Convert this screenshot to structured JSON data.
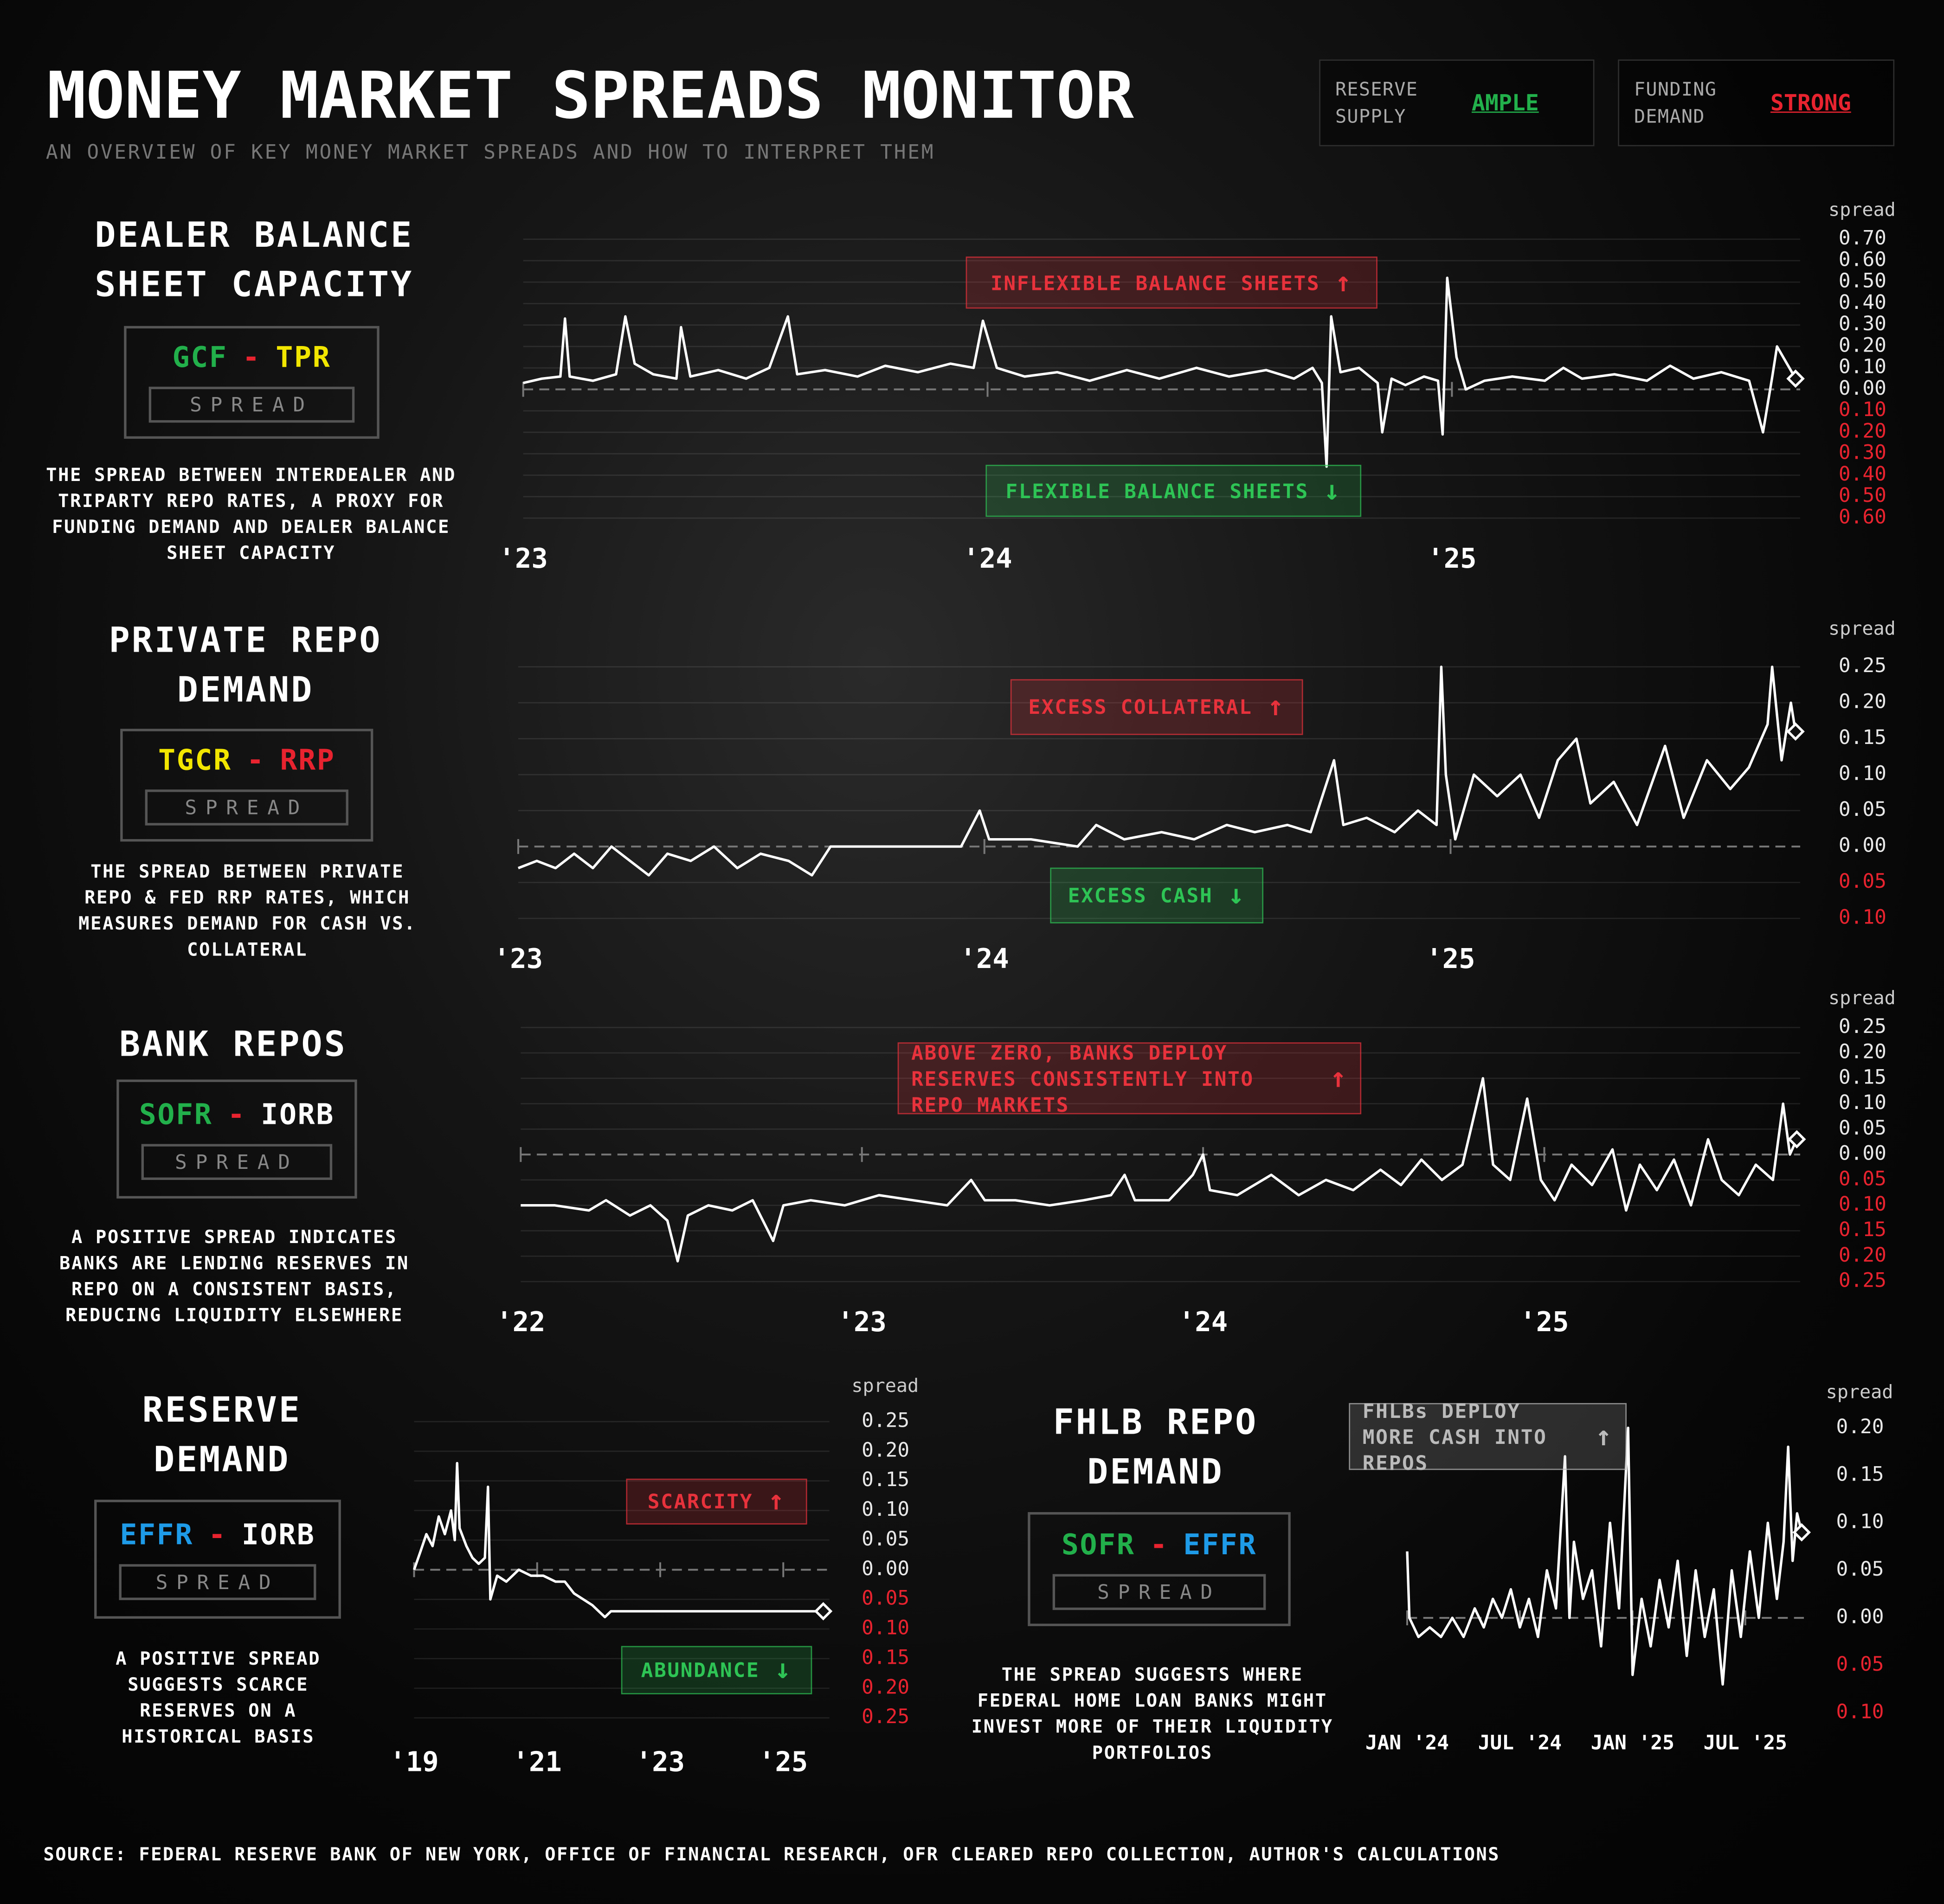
{
  "title": "MONEY MARKET SPREADS MONITOR",
  "subtitle": "AN OVERVIEW OF KEY MONEY MARKET SPREADS AND HOW TO INTERPRET THEM",
  "indicators": [
    {
      "label": "RESERVE SUPPLY",
      "value": "AMPLE",
      "color": "#22b04b"
    },
    {
      "label": "FUNDING DEMAND",
      "value": "STRONG",
      "color": "#e8232f"
    }
  ],
  "source": "SOURCE: FEDERAL RESERVE BANK OF NEW YORK, OFFICE OF FINANCIAL RESEARCH, OFR CLEARED REPO COLLECTION, AUTHOR'S CALCULATIONS",
  "chart_data": [
    {
      "type": "line",
      "title": "DEALER BALANCE SHEET CAPACITY",
      "formula": {
        "left": "GCF",
        "left_color": "#22b04b",
        "op": "-",
        "op_color": "#e8232f",
        "right": "TPR",
        "right_color": "#f2e600"
      },
      "spread_label": "SPREAD",
      "description": "THE SPREAD BETWEEN INTERDEALER AND TRIPARTY REPO RATES, A PROXY FOR FUNDING DEMAND AND DEALER BALANCE SHEET CAPACITY",
      "y_label": "spread",
      "grid": true,
      "color": "#ffffff",
      "annotations": [
        {
          "text": "INFLEXIBLE BALANCE SHEETS",
          "arrow": "↑",
          "color": "#e8323c"
        },
        {
          "text": "FLEXIBLE BALANCE SHEETS",
          "arrow": "↓",
          "color": "#2ec455"
        }
      ],
      "xlim": [
        2023,
        2025.75
      ],
      "xticks": [
        {
          "value": 2023,
          "label": "'23"
        },
        {
          "value": 2024,
          "label": "'24"
        },
        {
          "value": 2025,
          "label": "'25"
        }
      ],
      "ylim": [
        -0.6,
        0.7
      ],
      "yticks": [
        {
          "value": 0.7,
          "label": "0.70"
        },
        {
          "value": 0.6,
          "label": "0.60"
        },
        {
          "value": 0.5,
          "label": "0.50"
        },
        {
          "value": 0.4,
          "label": "0.40"
        },
        {
          "value": 0.3,
          "label": "0.30"
        },
        {
          "value": 0.2,
          "label": "0.20"
        },
        {
          "value": 0.1,
          "label": "0.10"
        },
        {
          "value": 0,
          "label": "0.00"
        },
        {
          "value": -0.1,
          "label": "0.10"
        },
        {
          "value": -0.2,
          "label": "0.20"
        },
        {
          "value": -0.3,
          "label": "0.30"
        },
        {
          "value": -0.4,
          "label": "0.40"
        },
        {
          "value": -0.5,
          "label": "0.50"
        },
        {
          "value": -0.6,
          "label": "0.60"
        }
      ],
      "x": [
        2023.0,
        2023.04,
        2023.08,
        2023.09,
        2023.1,
        2023.15,
        2023.2,
        2023.22,
        2023.24,
        2023.28,
        2023.33,
        2023.34,
        2023.36,
        2023.42,
        2023.48,
        2023.53,
        2023.57,
        2023.59,
        2023.65,
        2023.72,
        2023.78,
        2023.85,
        2023.92,
        2023.97,
        2023.99,
        2024.02,
        2024.08,
        2024.15,
        2024.22,
        2024.3,
        2024.37,
        2024.45,
        2024.52,
        2024.6,
        2024.66,
        2024.7,
        2024.72,
        2024.73,
        2024.74,
        2024.76,
        2024.8,
        2024.84,
        2024.85,
        2024.87,
        2024.9,
        2024.94,
        2024.97,
        2024.98,
        2024.99,
        2025.01,
        2025.03,
        2025.07,
        2025.13,
        2025.2,
        2025.24,
        2025.28,
        2025.35,
        2025.42,
        2025.47,
        2025.52,
        2025.58,
        2025.64,
        2025.67,
        2025.69,
        2025.7,
        2025.74
      ],
      "values": [
        0.03,
        0.05,
        0.06,
        0.33,
        0.06,
        0.04,
        0.07,
        0.34,
        0.12,
        0.07,
        0.05,
        0.29,
        0.06,
        0.09,
        0.05,
        0.1,
        0.34,
        0.07,
        0.09,
        0.06,
        0.11,
        0.08,
        0.12,
        0.1,
        0.32,
        0.1,
        0.06,
        0.08,
        0.04,
        0.09,
        0.05,
        0.1,
        0.06,
        0.09,
        0.05,
        0.1,
        0.03,
        -0.36,
        0.34,
        0.08,
        0.1,
        0.03,
        -0.2,
        0.05,
        0.02,
        0.06,
        0.04,
        -0.21,
        0.52,
        0.15,
        0.0,
        0.04,
        0.06,
        0.04,
        0.1,
        0.05,
        0.07,
        0.04,
        0.11,
        0.05,
        0.08,
        0.04,
        -0.2,
        0.06,
        0.2,
        0.05
      ]
    },
    {
      "type": "line",
      "title": "PRIVATE REPO DEMAND",
      "formula": {
        "left": "TGCR",
        "left_color": "#f2e600",
        "op": "-",
        "op_color": "#e8232f",
        "right": "RRP",
        "right_color": "#e8232f"
      },
      "spread_label": "SPREAD",
      "description": "THE SPREAD BETWEEN PRIVATE REPO & FED RRP RATES, WHICH MEASURES DEMAND FOR CASH VS. COLLATERAL",
      "y_label": "spread",
      "grid": true,
      "color": "#ffffff",
      "annotations": [
        {
          "text": "EXCESS COLLATERAL",
          "arrow": "↑",
          "color": "#e8323c"
        },
        {
          "text": "EXCESS CASH",
          "arrow": "↓",
          "color": "#2ec455"
        }
      ],
      "xlim": [
        2023,
        2025.75
      ],
      "xticks": [
        {
          "value": 2023,
          "label": "'23"
        },
        {
          "value": 2024,
          "label": "'24"
        },
        {
          "value": 2025,
          "label": "'25"
        }
      ],
      "ylim": [
        -0.1,
        0.25
      ],
      "yticks": [
        {
          "value": 0.25,
          "label": "0.25"
        },
        {
          "value": 0.2,
          "label": "0.20"
        },
        {
          "value": 0.15,
          "label": "0.15"
        },
        {
          "value": 0.1,
          "label": "0.10"
        },
        {
          "value": 0.05,
          "label": "0.05"
        },
        {
          "value": 0,
          "label": "0.00"
        },
        {
          "value": -0.05,
          "label": "0.05"
        },
        {
          "value": -0.1,
          "label": "0.10"
        }
      ],
      "x": [
        2023.0,
        2023.04,
        2023.08,
        2023.12,
        2023.16,
        2023.2,
        2023.24,
        2023.28,
        2023.32,
        2023.37,
        2023.42,
        2023.47,
        2023.52,
        2023.58,
        2023.63,
        2023.67,
        2023.8,
        2023.95,
        2023.99,
        2024.01,
        2024.1,
        2024.2,
        2024.24,
        2024.3,
        2024.38,
        2024.45,
        2024.52,
        2024.58,
        2024.65,
        2024.7,
        2024.75,
        2024.77,
        2024.82,
        2024.88,
        2024.93,
        2024.97,
        2024.98,
        2024.99,
        2025.01,
        2025.05,
        2025.1,
        2025.15,
        2025.19,
        2025.23,
        2025.27,
        2025.3,
        2025.35,
        2025.4,
        2025.46,
        2025.5,
        2025.55,
        2025.6,
        2025.64,
        2025.68,
        2025.69,
        2025.71,
        2025.73,
        2025.74
      ],
      "values": [
        -0.03,
        -0.02,
        -0.03,
        -0.01,
        -0.03,
        0.0,
        -0.02,
        -0.04,
        -0.01,
        -0.02,
        0.0,
        -0.03,
        -0.01,
        -0.02,
        -0.04,
        0.0,
        0.0,
        0.0,
        0.05,
        0.01,
        0.01,
        0.0,
        0.03,
        0.01,
        0.02,
        0.01,
        0.03,
        0.02,
        0.03,
        0.02,
        0.12,
        0.03,
        0.04,
        0.02,
        0.05,
        0.03,
        0.25,
        0.1,
        0.01,
        0.1,
        0.07,
        0.1,
        0.04,
        0.12,
        0.15,
        0.06,
        0.09,
        0.03,
        0.14,
        0.04,
        0.12,
        0.08,
        0.11,
        0.17,
        0.25,
        0.12,
        0.2,
        0.16
      ]
    },
    {
      "type": "line",
      "title": "BANK REPOS",
      "formula": {
        "left": "SOFR",
        "left_color": "#22b04b",
        "op": "-",
        "op_color": "#e8232f",
        "right": "IORB",
        "right_color": "#ffffff"
      },
      "spread_label": "SPREAD",
      "description": "A POSITIVE SPREAD INDICATES BANKS ARE LENDING RESERVES IN REPO ON A CONSISTENT BASIS, REDUCING LIQUIDITY ELSEWHERE",
      "y_label": "spread",
      "grid": true,
      "color": "#ffffff",
      "annotations": [
        {
          "text": "ABOVE ZERO, BANKS DEPLOY RESERVES CONSISTENTLY INTO REPO MARKETS",
          "arrow": "↑",
          "color": "#e8323c"
        }
      ],
      "xlim": [
        2022,
        2025.75
      ],
      "xticks": [
        {
          "value": 2022,
          "label": "'22"
        },
        {
          "value": 2023,
          "label": "'23"
        },
        {
          "value": 2024,
          "label": "'24"
        },
        {
          "value": 2025,
          "label": "'25"
        }
      ],
      "ylim": [
        -0.25,
        0.25
      ],
      "yticks": [
        {
          "value": 0.25,
          "label": "0.25"
        },
        {
          "value": 0.2,
          "label": "0.20"
        },
        {
          "value": 0.15,
          "label": "0.15"
        },
        {
          "value": 0.1,
          "label": "0.10"
        },
        {
          "value": 0.05,
          "label": "0.05"
        },
        {
          "value": 0,
          "label": "0.00"
        },
        {
          "value": -0.05,
          "label": "0.05"
        },
        {
          "value": -0.1,
          "label": "0.10"
        },
        {
          "value": -0.15,
          "label": "0.15"
        },
        {
          "value": -0.2,
          "label": "0.20"
        },
        {
          "value": -0.25,
          "label": "0.25"
        }
      ],
      "x": [
        2022.0,
        2022.1,
        2022.2,
        2022.25,
        2022.32,
        2022.38,
        2022.43,
        2022.46,
        2022.49,
        2022.55,
        2022.62,
        2022.68,
        2022.74,
        2022.77,
        2022.85,
        2022.95,
        2023.05,
        2023.15,
        2023.25,
        2023.32,
        2023.36,
        2023.45,
        2023.55,
        2023.65,
        2023.73,
        2023.77,
        2023.8,
        2023.9,
        2023.97,
        2024.0,
        2024.02,
        2024.1,
        2024.2,
        2024.28,
        2024.36,
        2024.44,
        2024.52,
        2024.58,
        2024.64,
        2024.7,
        2024.76,
        2024.82,
        2024.85,
        2024.9,
        2024.95,
        2024.99,
        2025.03,
        2025.08,
        2025.14,
        2025.2,
        2025.24,
        2025.28,
        2025.33,
        2025.38,
        2025.43,
        2025.48,
        2025.52,
        2025.57,
        2025.62,
        2025.67,
        2025.7,
        2025.72,
        2025.74
      ],
      "values": [
        -0.1,
        -0.1,
        -0.11,
        -0.09,
        -0.12,
        -0.1,
        -0.13,
        -0.21,
        -0.12,
        -0.1,
        -0.11,
        -0.09,
        -0.17,
        -0.1,
        -0.09,
        -0.1,
        -0.08,
        -0.09,
        -0.1,
        -0.05,
        -0.09,
        -0.09,
        -0.1,
        -0.09,
        -0.08,
        -0.04,
        -0.09,
        -0.09,
        -0.04,
        0.0,
        -0.07,
        -0.08,
        -0.04,
        -0.08,
        -0.05,
        -0.07,
        -0.03,
        -0.06,
        -0.01,
        -0.05,
        -0.02,
        0.15,
        -0.02,
        -0.05,
        0.11,
        -0.05,
        -0.09,
        -0.02,
        -0.06,
        0.01,
        -0.11,
        -0.02,
        -0.07,
        -0.01,
        -0.1,
        0.03,
        -0.05,
        -0.08,
        -0.02,
        -0.05,
        0.1,
        0.0,
        0.03
      ]
    },
    {
      "type": "line",
      "title": "RESERVE DEMAND",
      "formula": {
        "left": "EFFR",
        "left_color": "#1e9be8",
        "op": "-",
        "op_color": "#e8232f",
        "right": "IORB",
        "right_color": "#ffffff"
      },
      "spread_label": "SPREAD",
      "description": "A POSITIVE SPREAD SUGGESTS SCARCE RESERVES ON A HISTORICAL BASIS",
      "y_label": "spread",
      "grid": true,
      "color": "#ffffff",
      "annotations": [
        {
          "text": "SCARCITY",
          "arrow": "↑",
          "color": "#e8323c"
        },
        {
          "text": "ABUNDANCE",
          "arrow": "↓",
          "color": "#2ec455"
        }
      ],
      "xlim": [
        2019,
        2025.75
      ],
      "xticks": [
        {
          "value": 2019,
          "label": "'19"
        },
        {
          "value": 2021,
          "label": "'21"
        },
        {
          "value": 2023,
          "label": "'23"
        },
        {
          "value": 2025,
          "label": "'25"
        }
      ],
      "ylim": [
        -0.25,
        0.25
      ],
      "yticks": [
        {
          "value": 0.25,
          "label": "0.25"
        },
        {
          "value": 0.2,
          "label": "0.20"
        },
        {
          "value": 0.15,
          "label": "0.15"
        },
        {
          "value": 0.1,
          "label": "0.10"
        },
        {
          "value": 0.05,
          "label": "0.05"
        },
        {
          "value": 0,
          "label": "0.00"
        },
        {
          "value": -0.05,
          "label": "0.05"
        },
        {
          "value": -0.1,
          "label": "0.10"
        },
        {
          "value": -0.15,
          "label": "0.15"
        },
        {
          "value": -0.2,
          "label": "0.20"
        },
        {
          "value": -0.25,
          "label": "0.25"
        }
      ],
      "x": [
        2019.0,
        2019.1,
        2019.2,
        2019.3,
        2019.4,
        2019.5,
        2019.6,
        2019.66,
        2019.7,
        2019.74,
        2019.85,
        2019.95,
        2020.05,
        2020.15,
        2020.2,
        2020.24,
        2020.35,
        2020.5,
        2020.7,
        2020.9,
        2021.1,
        2021.3,
        2021.45,
        2021.6,
        2021.75,
        2021.9,
        2022.0,
        2022.1,
        2022.2,
        2022.3,
        2022.5,
        2022.8,
        2023.1,
        2023.4,
        2023.7,
        2024.0,
        2024.4,
        2024.8,
        2025.2,
        2025.65
      ],
      "values": [
        0.0,
        0.03,
        0.06,
        0.04,
        0.09,
        0.06,
        0.1,
        0.05,
        0.18,
        0.07,
        0.04,
        0.02,
        0.01,
        0.02,
        0.14,
        -0.05,
        -0.01,
        -0.02,
        0.0,
        -0.01,
        -0.01,
        -0.02,
        -0.02,
        -0.04,
        -0.05,
        -0.06,
        -0.07,
        -0.08,
        -0.07,
        -0.07,
        -0.07,
        -0.07,
        -0.07,
        -0.07,
        -0.07,
        -0.07,
        -0.07,
        -0.07,
        -0.07,
        -0.07
      ]
    },
    {
      "type": "line",
      "title": "FHLB REPO DEMAND",
      "formula": {
        "left": "SOFR",
        "left_color": "#22b04b",
        "op": "-",
        "op_color": "#e8232f",
        "right": "EFFR",
        "right_color": "#1e9be8"
      },
      "spread_label": "SPREAD",
      "description": "THE SPREAD SUGGESTS WHERE FEDERAL HOME LOAN BANKS MIGHT INVEST MORE OF THEIR LIQUIDITY PORTFOLIOS",
      "y_label": "spread",
      "grid": false,
      "color": "#ffffff",
      "annotations": [
        {
          "text": "FHLBs DEPLOY MORE CASH INTO REPOS",
          "arrow": "↑",
          "color": "#bbbbbb"
        }
      ],
      "xlim": [
        2024,
        2025.76
      ],
      "xticks": [
        {
          "value": 2024,
          "label": "JAN '24"
        },
        {
          "value": 2024.5,
          "label": "JUL '24"
        },
        {
          "value": 2025,
          "label": "JAN '25"
        },
        {
          "value": 2025.5,
          "label": "JUL '25"
        }
      ],
      "ylim": [
        -0.1,
        0.2
      ],
      "yticks": [
        {
          "value": 0.2,
          "label": "0.20"
        },
        {
          "value": 0.15,
          "label": "0.15"
        },
        {
          "value": 0.1,
          "label": "0.10"
        },
        {
          "value": 0.05,
          "label": "0.05"
        },
        {
          "value": 0,
          "label": "0.00"
        },
        {
          "value": -0.05,
          "label": "0.05"
        },
        {
          "value": -0.1,
          "label": "0.10"
        }
      ],
      "x": [
        2024.0,
        2024.01,
        2024.05,
        2024.1,
        2024.15,
        2024.2,
        2024.25,
        2024.3,
        2024.34,
        2024.38,
        2024.42,
        2024.46,
        2024.5,
        2024.54,
        2024.58,
        2024.62,
        2024.66,
        2024.7,
        2024.72,
        2024.74,
        2024.78,
        2024.82,
        2024.86,
        2024.9,
        2024.94,
        2024.98,
        2025.0,
        2025.04,
        2025.08,
        2025.12,
        2025.16,
        2025.2,
        2025.24,
        2025.28,
        2025.32,
        2025.36,
        2025.4,
        2025.44,
        2025.48,
        2025.52,
        2025.56,
        2025.6,
        2025.64,
        2025.67,
        2025.69,
        2025.71,
        2025.73,
        2025.75
      ],
      "values": [
        0.07,
        0.0,
        -0.02,
        -0.01,
        -0.02,
        0.0,
        -0.02,
        0.01,
        -0.01,
        0.02,
        0.0,
        0.03,
        -0.01,
        0.02,
        -0.02,
        0.05,
        0.01,
        0.17,
        0.0,
        0.08,
        0.02,
        0.05,
        -0.03,
        0.1,
        0.01,
        0.2,
        -0.06,
        0.02,
        -0.03,
        0.04,
        -0.01,
        0.06,
        -0.04,
        0.05,
        -0.02,
        0.03,
        -0.07,
        0.05,
        -0.02,
        0.07,
        0.0,
        0.1,
        0.02,
        0.08,
        0.18,
        0.06,
        0.11,
        0.09
      ]
    }
  ]
}
